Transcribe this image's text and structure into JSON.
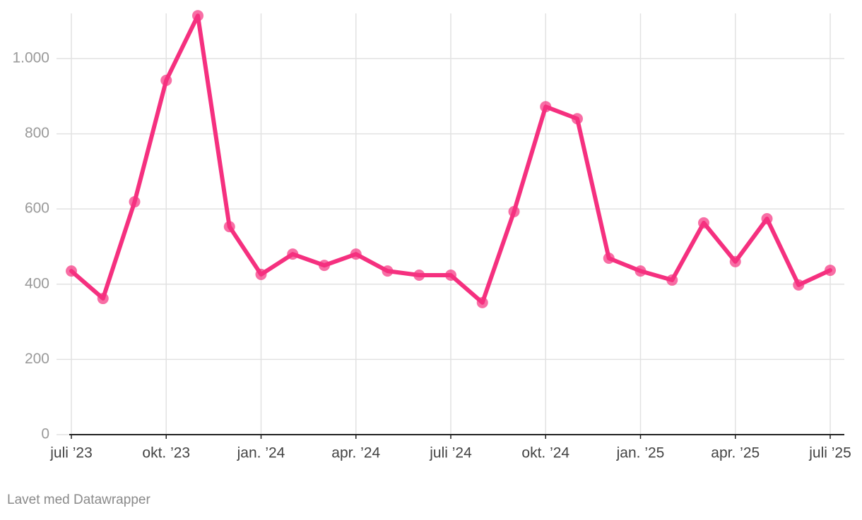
{
  "chart_data": {
    "type": "line",
    "categories": [
      "juli ’23",
      null,
      null,
      "okt. ’23",
      null,
      null,
      "jan. ’24",
      null,
      null,
      "apr. ’24",
      null,
      null,
      "juli ’24",
      null,
      null,
      "okt. ’24",
      null,
      null,
      "jan. ’25",
      null,
      null,
      "apr. ’25",
      null,
      null,
      "juli ’25"
    ],
    "values": [
      435,
      362,
      619,
      942,
      1114,
      553,
      426,
      480,
      450,
      480,
      435,
      424,
      424,
      351,
      593,
      872,
      840,
      469,
      435,
      411,
      563,
      460,
      574,
      398,
      437
    ],
    "color": "#f5307f",
    "ylim": [
      0,
      1120
    ],
    "yticks": [
      0,
      200,
      400,
      600,
      800,
      {
        "value": 1000,
        "label": "1.000"
      }
    ],
    "grid": true,
    "credit": "Lavet med Datawrapper"
  }
}
